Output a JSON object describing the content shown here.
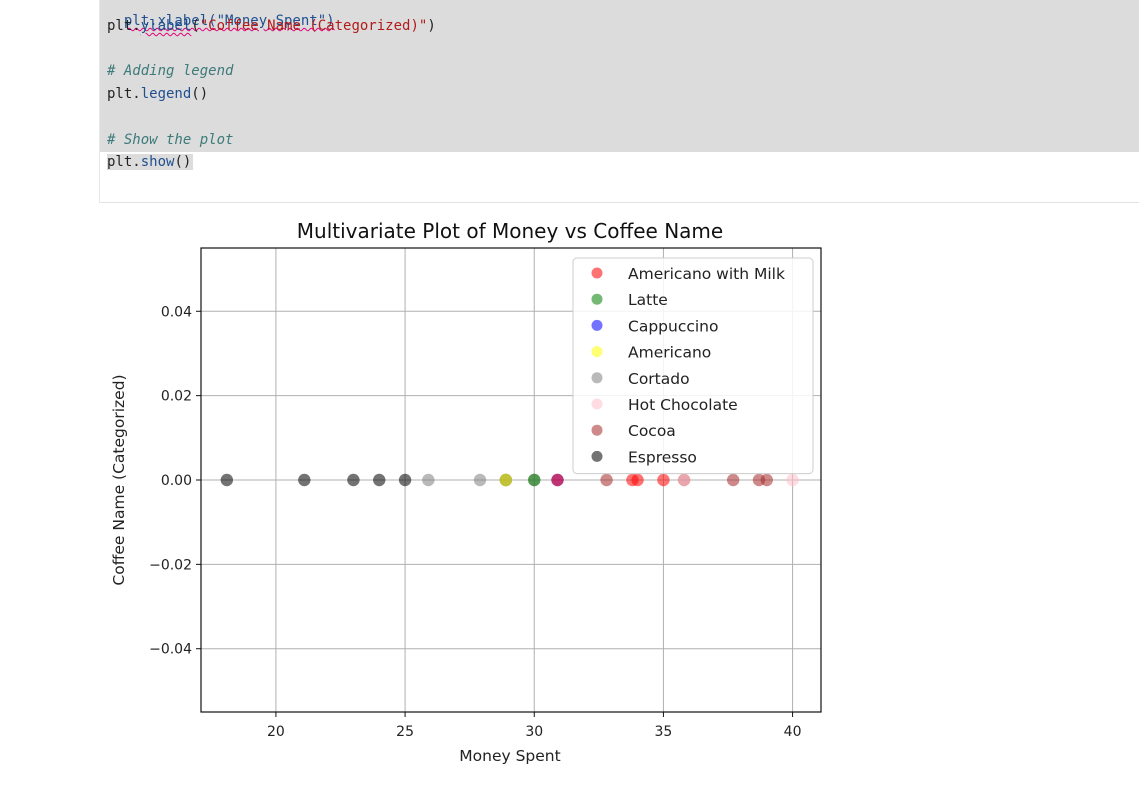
{
  "code": {
    "line_partial": "plt.xlabel(\"Money Spent\")",
    "line_ylabel_fn": "plt.ylabel",
    "line_ylabel_open": "(",
    "line_ylabel_str": "\"Coffee Name (Categorized)\"",
    "line_ylabel_close": ")",
    "comment_legend": "# Adding legend",
    "legend_fn_prefix": "plt.",
    "legend_fn": "legend",
    "legend_paren": "()",
    "comment_show": "# Show the plot",
    "show_prefix": "plt.",
    "show_fn": "show",
    "show_paren": "()"
  },
  "chart_data": {
    "type": "scatter",
    "title": "Multivariate Plot of Money vs Coffee Name",
    "xlabel": "Money Spent",
    "ylabel": "Coffee Name (Categorized)",
    "xlim": [
      17.1,
      41.1
    ],
    "ylim": [
      -0.055,
      0.055
    ],
    "xticks": [
      20,
      25,
      30,
      35,
      40
    ],
    "yticks": [
      -0.04,
      -0.02,
      0.0,
      0.02,
      0.04
    ],
    "ytick_labels": [
      "−0.04",
      "−0.02",
      "0.00",
      "0.02",
      "0.04"
    ],
    "grid": true,
    "legend_position": "upper right",
    "series": [
      {
        "name": "Espresso",
        "color": "#000000",
        "x": [
          18.1,
          21.1,
          23.0,
          24.0,
          25.0,
          28.9
        ],
        "y": [
          0,
          0,
          0,
          0,
          0,
          0
        ]
      },
      {
        "name": "Cortado",
        "color": "#808080",
        "x": [
          25.9,
          27.9,
          28.9,
          30.0
        ],
        "y": [
          0,
          0,
          0,
          0
        ]
      },
      {
        "name": "Americano",
        "color": "#ffff00",
        "x": [
          28.9
        ],
        "y": [
          0
        ]
      },
      {
        "name": "Latte",
        "color": "#008000",
        "x": [
          30.0
        ],
        "y": [
          0
        ]
      },
      {
        "name": "Cappuccino",
        "color": "#0000ff",
        "x": [
          30.9
        ],
        "y": [
          0
        ]
      },
      {
        "name": "Americano with Milk",
        "color": "#ff0000",
        "x": [
          30.9,
          33.8,
          34.0,
          35.0
        ],
        "y": [
          0,
          0,
          0,
          0
        ]
      },
      {
        "name": "Cocoa",
        "color": "#a52a2a",
        "x": [
          32.8,
          35.8,
          37.7,
          38.7,
          39.0
        ],
        "y": [
          0,
          0,
          0,
          0,
          0
        ]
      },
      {
        "name": "Hot Chocolate",
        "color": "#ffc0cb",
        "x": [
          35.8,
          40.0
        ],
        "y": [
          0,
          0
        ]
      }
    ],
    "legend_order": [
      "Americano with Milk",
      "Latte",
      "Cappuccino",
      "Americano",
      "Cortado",
      "Hot Chocolate",
      "Cocoa",
      "Espresso"
    ]
  }
}
